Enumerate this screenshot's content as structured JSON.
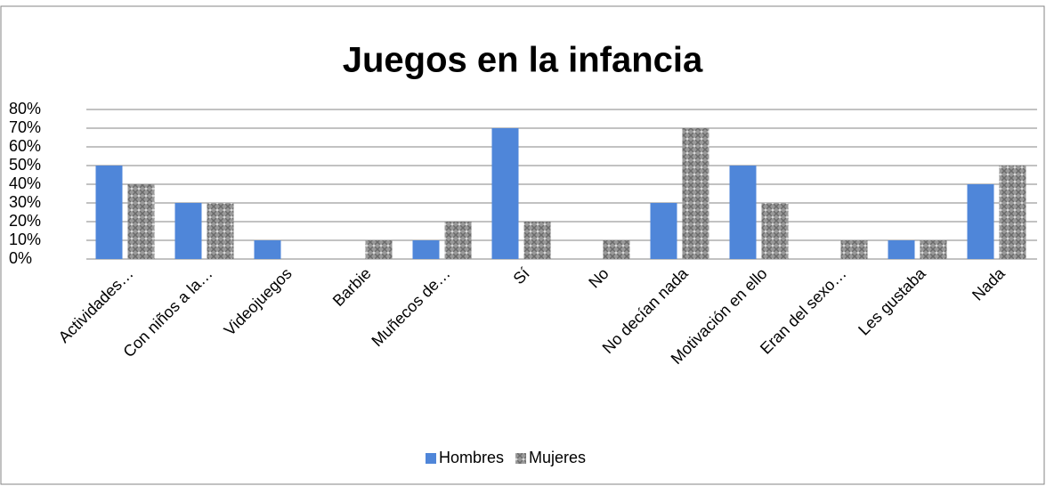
{
  "chart_data": {
    "type": "bar",
    "title": "Juegos en la infancia",
    "categories": [
      "Actividades…",
      "Con niños a la…",
      "Videojuegos",
      "Barbie",
      "Muñecos de…",
      "Sí",
      "No",
      "No decían nada",
      "Motivación en ello",
      "Eran del sexo…",
      "Les gustaba",
      "Nada"
    ],
    "series": [
      {
        "name": "Hombres",
        "color": "#4f86d9",
        "values": [
          50,
          30,
          10,
          0,
          10,
          70,
          0,
          30,
          50,
          0,
          10,
          40
        ]
      },
      {
        "name": "Mujeres",
        "color": "#8c8c8c",
        "values": [
          40,
          30,
          0,
          10,
          20,
          20,
          10,
          70,
          30,
          10,
          10,
          50
        ]
      }
    ],
    "ylim": [
      0,
      80
    ],
    "yticks": [
      {
        "value": 0,
        "label": "0%"
      },
      {
        "value": 10,
        "label": "10%"
      },
      {
        "value": 20,
        "label": "20%"
      },
      {
        "value": 30,
        "label": "30%"
      },
      {
        "value": 40,
        "label": "40%"
      },
      {
        "value": 50,
        "label": "50%"
      },
      {
        "value": 60,
        "label": "60%"
      },
      {
        "value": 70,
        "label": "70%"
      },
      {
        "value": 80,
        "label": "80%"
      }
    ],
    "grid": true,
    "legend": "bottom"
  }
}
